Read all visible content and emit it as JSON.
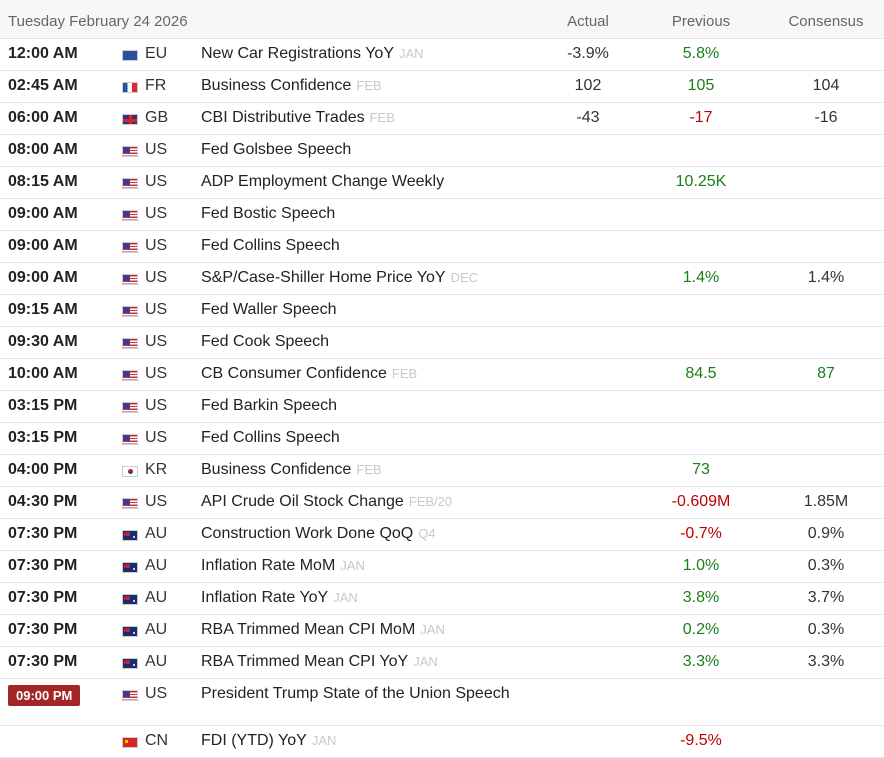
{
  "header": {
    "date": "Tuesday February 24 2026",
    "col_actual": "Actual",
    "col_previous": "Previous",
    "col_consensus": "Consensus"
  },
  "rows": [
    {
      "time": "12:00 AM",
      "flag": "eu-flag-icon",
      "country": "EU",
      "event": "New Car Registrations YoY",
      "period": "JAN",
      "actual": "-3.9%",
      "previous": "5.8%",
      "consensus": ""
    },
    {
      "time": "02:45 AM",
      "flag": "fr-flag-icon",
      "country": "FR",
      "event": "Business Confidence",
      "period": "FEB",
      "actual": "102",
      "previous": "105",
      "consensus": "104"
    },
    {
      "time": "06:00 AM",
      "flag": "gb-flag-icon",
      "country": "GB",
      "event": "CBI Distributive Trades",
      "period": "FEB",
      "actual": "-43",
      "previous": "-17",
      "consensus": "-16"
    },
    {
      "time": "08:00 AM",
      "flag": "us-flag-icon",
      "country": "US",
      "event": "Fed Golsbee Speech",
      "period": "",
      "actual": "",
      "previous": "",
      "consensus": ""
    },
    {
      "time": "08:15 AM",
      "flag": "us-flag-icon",
      "country": "US",
      "event": "ADP Employment Change Weekly",
      "period": "",
      "actual": "",
      "previous": "10.25K",
      "consensus": ""
    },
    {
      "time": "09:00 AM",
      "flag": "us-flag-icon",
      "country": "US",
      "event": "Fed Bostic Speech",
      "period": "",
      "actual": "",
      "previous": "",
      "consensus": ""
    },
    {
      "time": "09:00 AM",
      "flag": "us-flag-icon",
      "country": "US",
      "event": "Fed Collins Speech",
      "period": "",
      "actual": "",
      "previous": "",
      "consensus": ""
    },
    {
      "time": "09:00 AM",
      "flag": "us-flag-icon",
      "country": "US",
      "event": "S&P/Case-Shiller Home Price YoY",
      "period": "DEC",
      "actual": "",
      "previous": "1.4%",
      "consensus": "1.4%"
    },
    {
      "time": "09:15 AM",
      "flag": "us-flag-icon",
      "country": "US",
      "event": "Fed Waller Speech",
      "period": "",
      "actual": "",
      "previous": "",
      "consensus": ""
    },
    {
      "time": "09:30 AM",
      "flag": "us-flag-icon",
      "country": "US",
      "event": "Fed Cook Speech",
      "period": "",
      "actual": "",
      "previous": "",
      "consensus": ""
    },
    {
      "time": "10:00 AM",
      "flag": "us-flag-icon",
      "country": "US",
      "event": "CB Consumer Confidence",
      "period": "FEB",
      "actual": "",
      "previous": "84.5",
      "consensus": "87"
    },
    {
      "time": "03:15 PM",
      "flag": "us-flag-icon",
      "country": "US",
      "event": "Fed Barkin Speech",
      "period": "",
      "actual": "",
      "previous": "",
      "consensus": ""
    },
    {
      "time": "03:15 PM",
      "flag": "us-flag-icon",
      "country": "US",
      "event": "Fed Collins Speech",
      "period": "",
      "actual": "",
      "previous": "",
      "consensus": ""
    },
    {
      "time": "04:00 PM",
      "flag": "kr-flag-icon",
      "country": "KR",
      "event": "Business Confidence",
      "period": "FEB",
      "actual": "",
      "previous": "73",
      "consensus": ""
    },
    {
      "time": "04:30 PM",
      "flag": "us-flag-icon",
      "country": "US",
      "event": "API Crude Oil Stock Change",
      "period": "FEB/20",
      "actual": "",
      "previous": "-0.609M",
      "consensus": "1.85M"
    },
    {
      "time": "07:30 PM",
      "flag": "au-flag-icon",
      "country": "AU",
      "event": "Construction Work Done QoQ",
      "period": "Q4",
      "actual": "",
      "previous": "-0.7%",
      "consensus": "0.9%"
    },
    {
      "time": "07:30 PM",
      "flag": "au-flag-icon",
      "country": "AU",
      "event": "Inflation Rate MoM",
      "period": "JAN",
      "actual": "",
      "previous": "1.0%",
      "consensus": "0.3%"
    },
    {
      "time": "07:30 PM",
      "flag": "au-flag-icon",
      "country": "AU",
      "event": "Inflation Rate YoY",
      "period": "JAN",
      "actual": "",
      "previous": "3.8%",
      "consensus": "3.7%"
    },
    {
      "time": "07:30 PM",
      "flag": "au-flag-icon",
      "country": "AU",
      "event": "RBA Trimmed Mean CPI MoM",
      "period": "JAN",
      "actual": "",
      "previous": "0.2%",
      "consensus": "0.3%"
    },
    {
      "time": "07:30 PM",
      "flag": "au-flag-icon",
      "country": "AU",
      "event": "RBA Trimmed Mean CPI YoY",
      "period": "JAN",
      "actual": "",
      "previous": "3.3%",
      "consensus": "3.3%"
    },
    {
      "time": "09:00 PM",
      "flag": "us-flag-icon",
      "country": "US",
      "event": "President Trump State of the Union Speech",
      "period": "",
      "actual": "",
      "previous": "",
      "consensus": "",
      "highlight": true
    },
    {
      "time": "",
      "flag": "cn-flag-icon",
      "country": "CN",
      "event": "FDI (YTD) YoY",
      "period": "JAN",
      "actual": "",
      "previous": "-9.5%",
      "consensus": ""
    }
  ],
  "value_colors": {
    "positive": "#1a7f1a",
    "negative": "#c00000",
    "neutral": "#333333",
    "highlight_badge": "#a32626"
  },
  "cell_tones": [
    {
      "actual": "neu",
      "previous": "pos",
      "consensus": ""
    },
    {
      "actual": "neu",
      "previous": "pos",
      "consensus": "neu"
    },
    {
      "actual": "neu",
      "previous": "neg",
      "consensus": "neu"
    },
    {},
    {
      "previous": "pos"
    },
    {},
    {},
    {
      "previous": "pos",
      "consensus": "neu"
    },
    {},
    {},
    {
      "previous": "pos",
      "consensus": "pos"
    },
    {},
    {},
    {
      "previous": "pos"
    },
    {
      "previous": "neg",
      "consensus": "neu"
    },
    {
      "previous": "neg",
      "consensus": "neu"
    },
    {
      "previous": "pos",
      "consensus": "neu"
    },
    {
      "previous": "pos",
      "consensus": "neu"
    },
    {
      "previous": "pos",
      "consensus": "neu"
    },
    {
      "previous": "pos",
      "consensus": "neu"
    },
    {},
    {
      "previous": "neg"
    }
  ]
}
